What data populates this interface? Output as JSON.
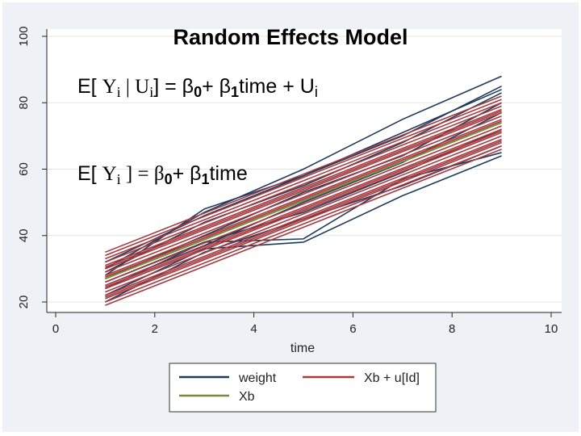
{
  "chart_data": {
    "type": "line",
    "title": "Random Effects Model",
    "xlabel": "time",
    "ylabel": "",
    "xlim": [
      0,
      10
    ],
    "ylim": [
      18,
      100
    ],
    "x_ticks": [
      0,
      2,
      4,
      6,
      8,
      10
    ],
    "y_ticks": [
      20,
      40,
      60,
      80,
      100
    ],
    "grid": "horizontal",
    "legend_position": "bottom",
    "colors": {
      "weight": "#1f3b5c",
      "xb_u": "#a63a3f",
      "xb": "#7a8a3c",
      "panel_bg": "#eef2f6",
      "plot_bg": "#ffffff"
    },
    "annotations": {
      "line1": {
        "pre": "E[ ",
        "y": "Y",
        "yi": "i",
        "bar": " | U",
        "ui": "i",
        "post": "] = β",
        "b0": "0",
        "mid": "+ β",
        "b1": "1",
        "tail": "time + U",
        "tail_i": "i"
      },
      "line2": {
        "pre": "E[ ",
        "y": "Y",
        "yi": "i",
        "post": " ] = β",
        "b0": "0",
        "mid": "+ β",
        "b1": "1",
        "tail": "time"
      }
    },
    "legend": [
      "weight",
      "Xb + u[Id]",
      "Xb"
    ],
    "x": [
      1,
      9
    ],
    "series": [
      {
        "name": "weight",
        "x": [
          1,
          3,
          5,
          7,
          9
        ],
        "lines": [
          [
            30,
            47,
            60,
            75,
            88
          ],
          [
            26,
            38,
            39,
            57,
            65
          ],
          [
            22,
            36,
            38,
            52,
            64
          ],
          [
            28,
            48,
            58,
            70,
            85
          ],
          [
            25,
            37,
            50,
            62,
            77
          ],
          [
            32,
            46,
            58,
            71,
            84
          ],
          [
            20,
            35,
            45,
            55,
            67
          ],
          [
            27,
            40,
            53,
            64,
            80
          ],
          [
            24,
            38,
            47,
            59,
            72
          ],
          [
            29,
            44,
            55,
            68,
            83
          ]
        ]
      },
      {
        "name": "Xb + u[Id]",
        "x": [
          1,
          9
        ],
        "intercepts": [
          35,
          33,
          32,
          31,
          30,
          29,
          28,
          27,
          26,
          25,
          24,
          23,
          22,
          21,
          20,
          19,
          34,
          30.5,
          27.5,
          24.5,
          21.5
        ],
        "endpoints": [
          82,
          80,
          79,
          78,
          77,
          76,
          75,
          74,
          73,
          72,
          71,
          70,
          69,
          68,
          67,
          66,
          81,
          77.5,
          74.5,
          71.5,
          68.5
        ]
      },
      {
        "name": "Xb",
        "x": [
          1,
          9
        ],
        "values": [
          27,
          74
        ]
      }
    ]
  }
}
